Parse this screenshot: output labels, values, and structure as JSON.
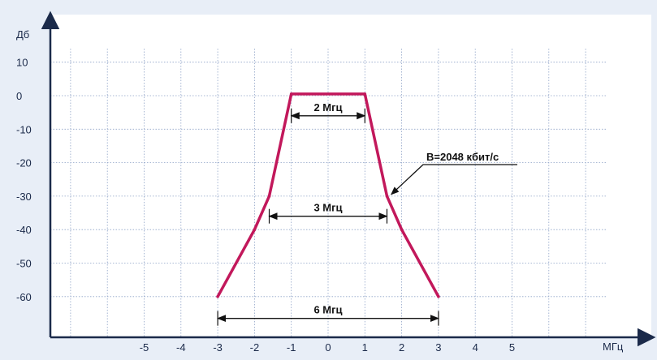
{
  "chart_data": {
    "type": "line",
    "ylabel": "Дб",
    "xlabel": "МГц",
    "x_ticks": [
      -5,
      -4,
      -3,
      -2,
      -1,
      0,
      1,
      2,
      3,
      4,
      5
    ],
    "y_ticks": [
      10,
      0,
      -10,
      -20,
      -30,
      -40,
      -50,
      -60
    ],
    "xlim": [
      -7.5,
      9.0
    ],
    "ylim": [
      -70,
      14
    ],
    "grid": true,
    "series": [
      {
        "name": "",
        "x": [
          -3.0,
          -2.0,
          -1.6,
          -1.0,
          1.0,
          1.6,
          2.0,
          3.0
        ],
        "y": [
          -60,
          -40,
          -30,
          0.5,
          0.5,
          -30,
          -40,
          -60
        ]
      }
    ],
    "annotations": {
      "band_2": {
        "label": "2 Мгц",
        "from": -1.0,
        "to": 1.0,
        "y": -6
      },
      "band_3": {
        "label": "3 Мгц",
        "from": -1.6,
        "to": 1.6,
        "y": -36
      },
      "band_6": {
        "label": "6 Мгц",
        "from": -3.0,
        "to": 3.0,
        "y": -66.5
      },
      "bitrate": {
        "label": "B=2048 кбит/с",
        "point_x": 1.65,
        "point_y": -29.5
      }
    }
  },
  "colors": {
    "background": "#e8eef7",
    "plot": "#ffffff",
    "curve": "#c2185b",
    "axis": "#1b2a4a",
    "grid": "#8fa3c7"
  }
}
